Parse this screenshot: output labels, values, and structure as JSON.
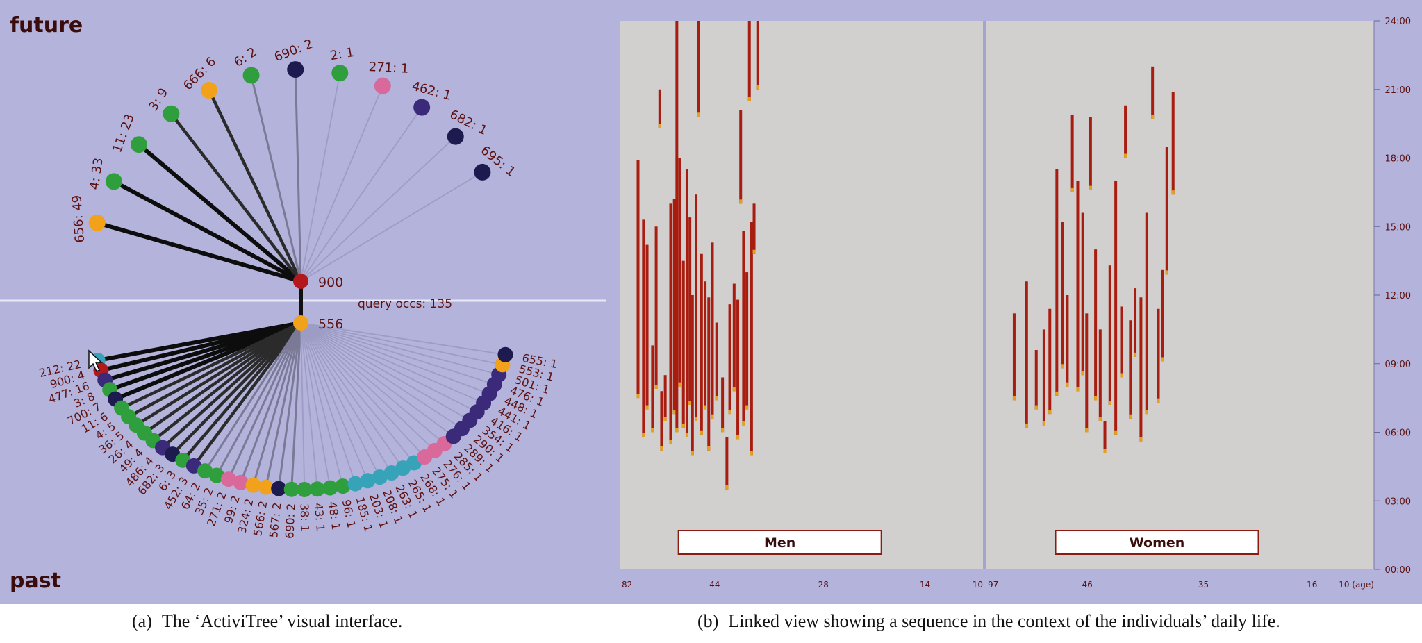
{
  "activitree": {
    "future_label": "future",
    "past_label": "past",
    "query_top_label": "900",
    "query_bottom_label": "556",
    "query_occs_label": "query occs: 135",
    "future_nodes": [
      {
        "label": "656: 49",
        "color": "#f2a21a",
        "weight": 4
      },
      {
        "label": "4: 33",
        "color": "#2f9e3c",
        "weight": 4
      },
      {
        "label": "11: 23",
        "color": "#2f9e3c",
        "weight": 4
      },
      {
        "label": "3: 9",
        "color": "#2f9e3c",
        "weight": 3
      },
      {
        "label": "666: 6",
        "color": "#f2a21a",
        "weight": 3
      },
      {
        "label": "6: 2",
        "color": "#2f9e3c",
        "weight": 2
      },
      {
        "label": "690: 2",
        "color": "#1c1a4e",
        "weight": 2
      },
      {
        "label": "2: 1",
        "color": "#2f9e3c",
        "weight": 1
      },
      {
        "label": "271: 1",
        "color": "#d9699b",
        "weight": 1
      },
      {
        "label": "462: 1",
        "color": "#3b2a7a",
        "weight": 1
      },
      {
        "label": "682: 1",
        "color": "#1c1a4e",
        "weight": 1
      },
      {
        "label": "695: 1",
        "color": "#1c1a4e",
        "weight": 1
      }
    ],
    "past_nodes": [
      {
        "label": "212: 22",
        "color": "#36a3b8",
        "weight": 4
      },
      {
        "label": "900: 4",
        "color": "#b3181d",
        "weight": 4
      },
      {
        "label": "477: 16",
        "color": "#3b2a7a",
        "weight": 4
      },
      {
        "label": "3: 8",
        "color": "#2f9e3c",
        "weight": 4
      },
      {
        "label": "700: 7",
        "color": "#1c1a4e",
        "weight": 4
      },
      {
        "label": "11: 6",
        "color": "#2f9e3c",
        "weight": 3
      },
      {
        "label": "4: 5",
        "color": "#2f9e3c",
        "weight": 3
      },
      {
        "label": "36: 5",
        "color": "#2f9e3c",
        "weight": 3
      },
      {
        "label": "26: 4",
        "color": "#2f9e3c",
        "weight": 3
      },
      {
        "label": "49: 4",
        "color": "#2f9e3c",
        "weight": 3
      },
      {
        "label": "486: 4",
        "color": "#3b2a7a",
        "weight": 3
      },
      {
        "label": "682: 3",
        "color": "#1c1a4e",
        "weight": 3
      },
      {
        "label": "6: 3",
        "color": "#2f9e3c",
        "weight": 3
      },
      {
        "label": "452: 3",
        "color": "#3b2a7a",
        "weight": 3
      },
      {
        "label": "64: 2",
        "color": "#2f9e3c",
        "weight": 2
      },
      {
        "label": "35: 2",
        "color": "#2f9e3c",
        "weight": 2
      },
      {
        "label": "271: 2",
        "color": "#d9699b",
        "weight": 2
      },
      {
        "label": "99: 2",
        "color": "#d9699b",
        "weight": 2
      },
      {
        "label": "324: 2",
        "color": "#f2a21a",
        "weight": 2
      },
      {
        "label": "566: 2",
        "color": "#f2a21a",
        "weight": 2
      },
      {
        "label": "567: 2",
        "color": "#1c1a4e",
        "weight": 2
      },
      {
        "label": "690: 2",
        "color": "#2f9e3c",
        "weight": 2
      },
      {
        "label": "38: 1",
        "color": "#2f9e3c",
        "weight": 1
      },
      {
        "label": "43: 1",
        "color": "#2f9e3c",
        "weight": 1
      },
      {
        "label": "48: 1",
        "color": "#2f9e3c",
        "weight": 1
      },
      {
        "label": "96: 1",
        "color": "#2f9e3c",
        "weight": 1
      },
      {
        "label": "185: 1",
        "color": "#36a3b8",
        "weight": 1
      },
      {
        "label": "203: 1",
        "color": "#36a3b8",
        "weight": 1
      },
      {
        "label": "208: 1",
        "color": "#36a3b8",
        "weight": 1
      },
      {
        "label": "263: 1",
        "color": "#36a3b8",
        "weight": 1
      },
      {
        "label": "265: 1",
        "color": "#36a3b8",
        "weight": 1
      },
      {
        "label": "268: 1",
        "color": "#36a3b8",
        "weight": 1
      },
      {
        "label": "275: 1",
        "color": "#d9699b",
        "weight": 1
      },
      {
        "label": "276: 1",
        "color": "#d9699b",
        "weight": 1
      },
      {
        "label": "285: 1",
        "color": "#d9699b",
        "weight": 1
      },
      {
        "label": "289: 1",
        "color": "#3b2a7a",
        "weight": 1
      },
      {
        "label": "290: 1",
        "color": "#3b2a7a",
        "weight": 1
      },
      {
        "label": "354: 1",
        "color": "#3b2a7a",
        "weight": 1
      },
      {
        "label": "416: 1",
        "color": "#3b2a7a",
        "weight": 1
      },
      {
        "label": "441: 1",
        "color": "#3b2a7a",
        "weight": 1
      },
      {
        "label": "448: 1",
        "color": "#3b2a7a",
        "weight": 1
      },
      {
        "label": "476: 1",
        "color": "#3b2a7a",
        "weight": 1
      },
      {
        "label": "501: 1",
        "color": "#3b2a7a",
        "weight": 1
      },
      {
        "label": "553: 1",
        "color": "#f2a21a",
        "weight": 1
      },
      {
        "label": "655: 1",
        "color": "#1c1a4e",
        "weight": 1
      }
    ]
  },
  "linked_view": {
    "y_ticks": [
      "24:00",
      "21:00",
      "18:00",
      "15:00",
      "12:00",
      "09:00",
      "06:00",
      "03:00",
      "00:00"
    ],
    "panels": [
      {
        "name": "Men",
        "x_ticks": [
          "82",
          "44",
          "28",
          "14",
          "10"
        ]
      },
      {
        "name": "Women",
        "x_ticks": [
          "97",
          "46",
          "35",
          "16",
          "10 (age)"
        ]
      }
    ],
    "bar_color": "#a81d10",
    "accent_color": "#e2a21c",
    "men_bars": [
      [
        0.045,
        7.5,
        17.9
      ],
      [
        0.06,
        5.8,
        15.3
      ],
      [
        0.07,
        7.0,
        14.2
      ],
      [
        0.085,
        6.0,
        9.8
      ],
      [
        0.095,
        7.9,
        15.0
      ],
      [
        0.105,
        19.3,
        21.0
      ],
      [
        0.11,
        5.2,
        7.8
      ],
      [
        0.12,
        6.5,
        8.5
      ],
      [
        0.135,
        5.5,
        16.0
      ],
      [
        0.145,
        6.8,
        16.2
      ],
      [
        0.152,
        6.0,
        24.0
      ],
      [
        0.16,
        8.0,
        18.0
      ],
      [
        0.17,
        6.2,
        13.5
      ],
      [
        0.18,
        5.8,
        17.5
      ],
      [
        0.188,
        7.2,
        15.4
      ],
      [
        0.195,
        5.0,
        12.0
      ],
      [
        0.205,
        6.5,
        16.4
      ],
      [
        0.212,
        19.8,
        24.0
      ],
      [
        0.22,
        5.9,
        13.8
      ],
      [
        0.23,
        7.0,
        12.6
      ],
      [
        0.24,
        5.2,
        11.9
      ],
      [
        0.25,
        6.6,
        14.3
      ],
      [
        0.262,
        7.4,
        10.8
      ],
      [
        0.278,
        6.0,
        8.4
      ],
      [
        0.29,
        3.5,
        5.8
      ],
      [
        0.298,
        6.8,
        11.6
      ],
      [
        0.31,
        7.8,
        12.5
      ],
      [
        0.32,
        5.7,
        11.8
      ],
      [
        0.328,
        16.0,
        20.1
      ],
      [
        0.336,
        6.3,
        14.8
      ],
      [
        0.345,
        7.0,
        13.0
      ],
      [
        0.352,
        20.5,
        24.0
      ],
      [
        0.358,
        5.0,
        15.2
      ],
      [
        0.365,
        13.8,
        16.0
      ],
      [
        0.375,
        21.0,
        24.0
      ]
    ],
    "women_bars": [
      [
        0.068,
        7.4,
        11.2
      ],
      [
        0.1,
        6.2,
        12.6
      ],
      [
        0.125,
        7.0,
        9.6
      ],
      [
        0.145,
        6.3,
        10.5
      ],
      [
        0.16,
        6.8,
        11.4
      ],
      [
        0.178,
        7.6,
        17.5
      ],
      [
        0.192,
        8.8,
        15.2
      ],
      [
        0.205,
        8.0,
        12.0
      ],
      [
        0.218,
        16.5,
        19.9
      ],
      [
        0.232,
        7.8,
        17.0
      ],
      [
        0.245,
        8.5,
        15.6
      ],
      [
        0.255,
        6.0,
        11.2
      ],
      [
        0.265,
        16.6,
        19.8
      ],
      [
        0.278,
        7.4,
        14.0
      ],
      [
        0.29,
        6.5,
        10.5
      ],
      [
        0.302,
        5.1,
        6.5
      ],
      [
        0.315,
        7.2,
        13.3
      ],
      [
        0.33,
        5.9,
        17.0
      ],
      [
        0.345,
        8.4,
        11.5
      ],
      [
        0.355,
        18.0,
        20.3
      ],
      [
        0.368,
        6.6,
        10.9
      ],
      [
        0.38,
        9.3,
        12.3
      ],
      [
        0.395,
        5.6,
        11.9
      ],
      [
        0.41,
        6.8,
        15.6
      ],
      [
        0.425,
        19.7,
        22.0
      ],
      [
        0.44,
        7.3,
        11.4
      ],
      [
        0.45,
        9.1,
        13.1
      ],
      [
        0.462,
        12.9,
        18.5
      ],
      [
        0.478,
        16.4,
        20.9
      ]
    ]
  },
  "captions": {
    "a_label": "(a)",
    "a_text": "The ‘ActiviTree’ visual interface.",
    "b_label": "(b)",
    "b_text": "Linked view showing a sequence in the context of the individuals’ daily life."
  }
}
